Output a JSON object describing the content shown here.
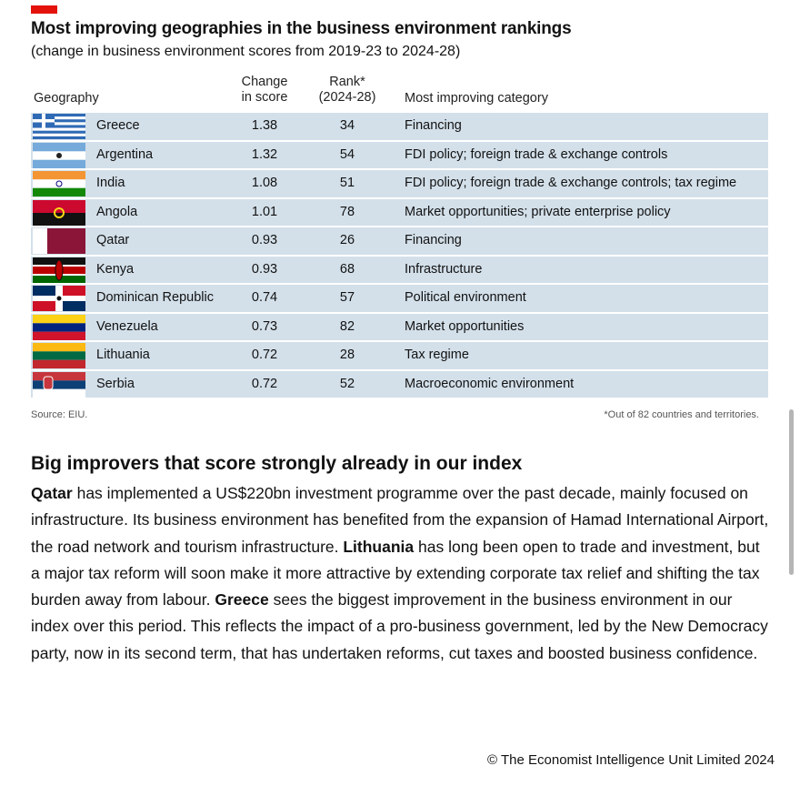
{
  "title": "Most improving geographies in the business environment rankings",
  "subtitle": "(change in business environment scores from 2019-23 to 2024-28)",
  "headers": {
    "geography": "Geography",
    "change_l1": "Change",
    "change_l2": "in score",
    "rank_l1": "Rank*",
    "rank_l2": "(2024-28)",
    "category": "Most improving category"
  },
  "rows": [
    {
      "flag": "greece-flag",
      "country": "Greece",
      "change": "1.38",
      "rank": "34",
      "category": "Financing"
    },
    {
      "flag": "argentina-flag",
      "country": "Argentina",
      "change": "1.32",
      "rank": "54",
      "category": "FDI policy; foreign trade & exchange controls"
    },
    {
      "flag": "india-flag",
      "country": "India",
      "change": "1.08",
      "rank": "51",
      "category": "FDI policy; foreign trade & exchange controls; tax regime"
    },
    {
      "flag": "angola-flag",
      "country": "Angola",
      "change": "1.01",
      "rank": "78",
      "category": "Market opportunities; private enterprise policy"
    },
    {
      "flag": "qatar-flag",
      "country": "Qatar",
      "change": "0.93",
      "rank": "26",
      "category": "Financing"
    },
    {
      "flag": "kenya-flag",
      "country": "Kenya",
      "change": "0.93",
      "rank": "68",
      "category": "Infrastructure"
    },
    {
      "flag": "dominican-republic-flag",
      "country": "Dominican Republic",
      "change": "0.74",
      "rank": "57",
      "category": "Political environment"
    },
    {
      "flag": "venezuela-flag",
      "country": "Venezuela",
      "change": "0.73",
      "rank": "82",
      "category": "Market opportunities"
    },
    {
      "flag": "lithuania-flag",
      "country": "Lithuania",
      "change": "0.72",
      "rank": "28",
      "category": "Tax regime"
    },
    {
      "flag": "serbia-flag",
      "country": "Serbia",
      "change": "0.72",
      "rank": "52",
      "category": "Macroeconomic environment"
    }
  ],
  "source": "Source: EIU.",
  "footnote": "*Out of 82 countries and territories.",
  "section": {
    "heading": "Big improvers that score strongly already in our index",
    "parts": [
      {
        "b": "Qatar"
      },
      {
        "t": " has implemented a US$220bn investment programme over the past decade, mainly focused on infrastructure. Its business environment has benefited from the expansion of Hamad International Airport, the road network and tourism infrastructure. "
      },
      {
        "b": "Lithuania"
      },
      {
        "t": " has long been open to trade and investment, but a major tax reform will soon make it more attractive by extending corporate tax relief and shifting the tax burden away from labour. "
      },
      {
        "b": "Greece"
      },
      {
        "t": " sees the biggest improvement in the business environment in our index over this period. This reflects the impact of a pro-business government, led by the New Democracy party, now in its second term, that has undertaken reforms, cut taxes and boosted business confidence."
      }
    ]
  },
  "copyright": "© The Economist Intelligence Unit Limited 2024",
  "colors": {
    "accent": "#e3120b",
    "row_bg": "#d3e0ea"
  }
}
